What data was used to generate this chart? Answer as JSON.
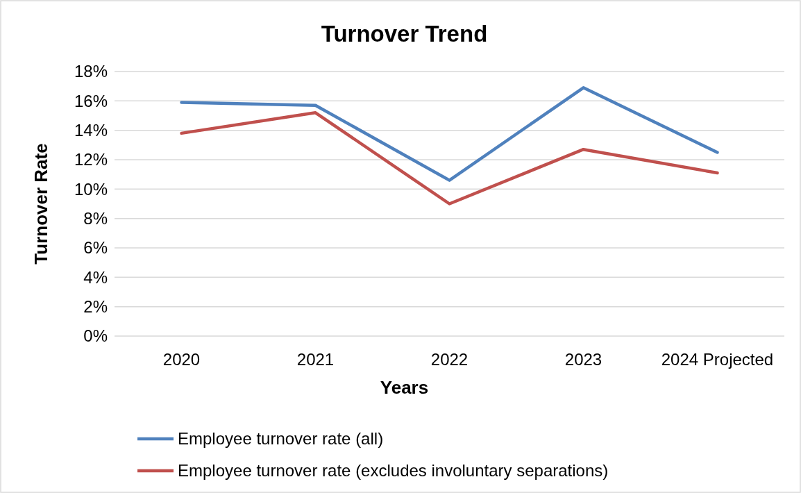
{
  "chart_data": {
    "type": "line",
    "title": "Turnover Trend",
    "xlabel": "Years",
    "ylabel": "Turnover Rate",
    "categories": [
      "2020",
      "2021",
      "2022",
      "2023",
      "2024 Projected"
    ],
    "series": [
      {
        "name": "Employee turnover rate (all)",
        "color": "#4f81bd",
        "values": [
          15.9,
          15.7,
          10.6,
          16.9,
          12.5
        ]
      },
      {
        "name": "Employee turnover rate (excludes involuntary separations)",
        "color": "#c0504d",
        "values": [
          13.8,
          15.2,
          9.0,
          12.7,
          11.1
        ]
      }
    ],
    "ylim": [
      0,
      18
    ],
    "yticks": [
      {
        "value": 0,
        "label": "0%"
      },
      {
        "value": 2,
        "label": "2%"
      },
      {
        "value": 4,
        "label": "4%"
      },
      {
        "value": 6,
        "label": "6%"
      },
      {
        "value": 8,
        "label": "8%"
      },
      {
        "value": 10,
        "label": "10%"
      },
      {
        "value": 12,
        "label": "12%"
      },
      {
        "value": 14,
        "label": "14%"
      },
      {
        "value": 16,
        "label": "16%"
      },
      {
        "value": 18,
        "label": "18%"
      }
    ],
    "grid": "y",
    "legend": "bottom",
    "marker": "none",
    "line_style": "solid"
  }
}
